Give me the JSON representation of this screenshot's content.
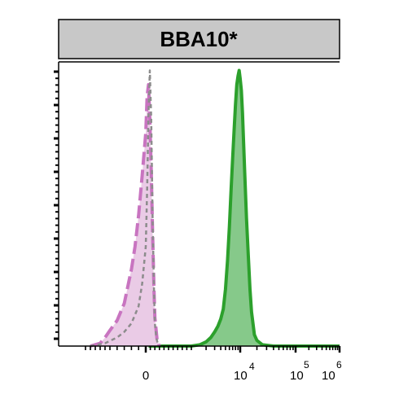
{
  "chart_data": {
    "type": "area",
    "title": "BBA10*",
    "x_scale": "biexponential",
    "x_ticks": [
      {
        "label": "0",
        "value": 0
      },
      {
        "label": "10",
        "exp": "4",
        "value": 10000
      },
      {
        "label": "10",
        "exp": "5",
        "value": 100000
      },
      {
        "label": "10",
        "exp": "6",
        "value": 1000000
      }
    ],
    "xlim": [
      -1500,
      1000000
    ],
    "ylim": [
      0,
      100
    ],
    "y_tick_labels": false,
    "grid": false,
    "legend": "none",
    "series": [
      {
        "style": "filled-solid",
        "stroke": "#2ca02c",
        "fill": "#86c98a",
        "x": [
          60,
          1000,
          1500,
          2000,
          2500,
          3000,
          3500,
          4000,
          4500,
          5000,
          5500,
          6000,
          6500,
          7000,
          7500,
          8000,
          8500,
          9000,
          9500,
          10000,
          10500,
          11000,
          11500,
          12000,
          13000,
          14000,
          15000,
          16000,
          18000,
          20000,
          25000,
          40000,
          1000000
        ],
        "y": [
          0,
          0,
          0.5,
          1.5,
          3,
          5,
          7,
          9.5,
          13,
          20,
          30,
          42,
          55,
          66,
          76,
          85,
          92,
          95,
          97,
          94,
          90,
          82,
          72,
          62,
          45,
          32,
          20,
          12,
          4,
          2,
          0.5,
          0,
          0
        ]
      },
      {
        "style": "filled-dashed",
        "stroke": "#c874c0",
        "fill": "#eacbe6",
        "x": [
          -900,
          -700,
          -600,
          -500,
          -400,
          -300,
          -200,
          -150,
          -100,
          -50,
          0,
          30,
          60,
          90,
          120,
          150,
          180,
          200,
          250,
          300
        ],
        "y": [
          0,
          1,
          3,
          5.5,
          9,
          15,
          27,
          35,
          46,
          60,
          75,
          88,
          92,
          80,
          62,
          40,
          20,
          10,
          2,
          0
        ]
      },
      {
        "style": "dotted",
        "stroke": "#8c8c8c",
        "x": [
          -900,
          -600,
          -400,
          -300,
          -200,
          -100,
          -50,
          0,
          30,
          60,
          90,
          120,
          150,
          180,
          200,
          230,
          260,
          300
        ],
        "y": [
          0,
          1,
          3,
          5,
          8,
          14,
          22,
          35,
          55,
          82,
          97,
          80,
          45,
          20,
          8,
          3,
          1,
          0
        ]
      }
    ]
  }
}
